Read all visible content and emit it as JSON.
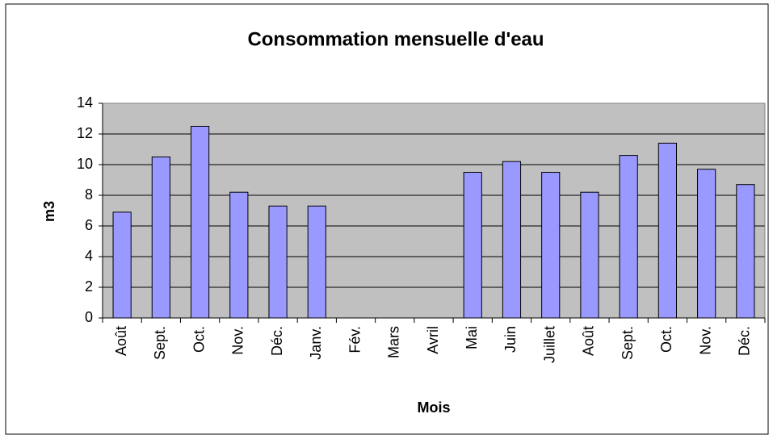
{
  "chart_data": {
    "type": "bar",
    "title": "Consommation mensuelle d'eau",
    "x_label": "Mois",
    "y_label": "m3",
    "categories": [
      "Août",
      "Sept.",
      "Oct.",
      "Nov.",
      "Déc.",
      "Janv.",
      "Fév.",
      "Mars",
      "Avril",
      "Mai",
      "Juin",
      "Juillet",
      "Août",
      "Sept.",
      "Oct.",
      "Nov.",
      "Déc."
    ],
    "values": [
      6.9,
      10.5,
      12.5,
      8.2,
      7.3,
      7.3,
      null,
      null,
      null,
      9.5,
      10.2,
      9.5,
      8.2,
      10.6,
      11.4,
      9.7,
      8.7
    ],
    "color": "#9999ff",
    "ylim": [
      0,
      14
    ],
    "yticks": [
      0,
      2,
      4,
      6,
      8,
      10,
      12,
      14
    ],
    "grid": true
  }
}
